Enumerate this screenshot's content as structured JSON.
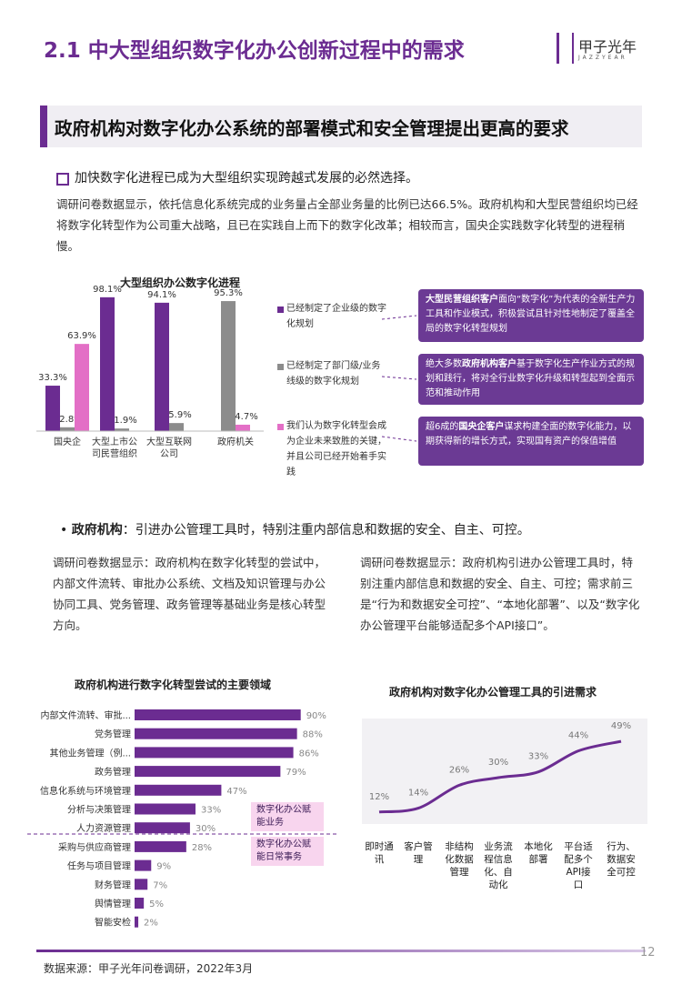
{
  "header": {
    "title": "2.1 中大型组织数字化办公创新过程中的需求",
    "logo": "甲子光年",
    "logo_sub": "JAZZYEAR"
  },
  "banner": "政府机构对数字化办公系统的部署模式和安全管理提出更高的要求",
  "section1": {
    "heading": "加快数字化进程已成为大型组织实现跨越式发展的必然选择。",
    "text": "调研问卷数据显示，依托信息化系统完成的业务量占全部业务量的比例已达66.5%。政府机构和大型民营组织均已经将数字化转型作为公司重大战略，且已在实践自上而下的数字化改革；相较而言，国央企实践数字化转型的进程稍慢。"
  },
  "chart_data": [
    {
      "type": "bar",
      "title": "大型组织办公数字化进程",
      "categories": [
        "国央企",
        "大型上市公司民营组织",
        "大型互联网公司",
        "政府机关"
      ],
      "series": [
        {
          "name": "已经制定了企业级的数字化规划",
          "color": "#6b2c91",
          "values": [
            33.3,
            98.1,
            94.1,
            null
          ],
          "value_labels": [
            "33.3%",
            "98.1%",
            "94.1%",
            null
          ]
        },
        {
          "name": "已经制定了部门级/业务线级的数字化规划",
          "color": "#8c8c8c",
          "values": [
            2.8,
            1.9,
            5.9,
            95.3
          ],
          "value_labels": [
            "2.8%",
            "1.9%",
            "5.9%",
            "95.3%"
          ]
        },
        {
          "name": "我们认为数字化转型会成为企业未来致胜的关键，并且公司已经开始着手实践",
          "color": "#e36fc6",
          "values": [
            63.9,
            null,
            null,
            4.7
          ],
          "value_labels": [
            "63.9%",
            null,
            null,
            "4.7%"
          ]
        }
      ],
      "callouts": [
        {
          "bold": "大型民营组织客户",
          "before": "",
          "after": "面向“数字化”为代表的全新生产力工具和作业模式，积极尝试且针对性地制定了覆盖全局的数字化转型规划"
        },
        {
          "before": "绝大多数",
          "bold": "政府机构客户",
          "after": "基于数字化生产作业方式的规划和践行，将对全行业数字化升级和转型起到全面示范和推动作用"
        },
        {
          "before": "超6成的",
          "bold": "国央企客户",
          "after": "谋求构建全面的数字化能力，以期获得新的增长方式，实现国有资产的保值增值"
        }
      ]
    },
    {
      "type": "hbar",
      "title": "政府机构进行数字化转型尝试的主要领域",
      "categories": [
        "内部文件流转、审批...",
        "党务管理",
        "其他业务管理（例...",
        "政务管理",
        "信息化系统与环境管理",
        "分析与决策管理",
        "人力资源管理",
        "采购与供应商管理",
        "任务与项目管理",
        "财务管理",
        "舆情管理",
        "智能安检"
      ],
      "values": [
        90,
        88,
        86,
        79,
        47,
        33,
        30,
        28,
        9,
        7,
        5,
        2
      ],
      "value_labels": [
        "90%",
        "88%",
        "86%",
        "79%",
        "47%",
        "33%",
        "30%",
        "28%",
        "9%",
        "7%",
        "5%",
        "2%"
      ],
      "color": "#6b2c91",
      "annotations": [
        "数字化办公赋能业务",
        "数字化办公赋能日常事务"
      ]
    },
    {
      "type": "line",
      "title": "政府机构对数字化办公管理工具的引进需求",
      "categories": [
        "即时通讯",
        "客户管理",
        "非结构化数据管理",
        "业务流程信息化、自动化",
        "本地化部署",
        "平台适配多个API接口",
        "行为、数据安全可控"
      ],
      "values": [
        12,
        14,
        26,
        30,
        33,
        44,
        49
      ],
      "value_labels": [
        "12%",
        "14%",
        "26%",
        "30%",
        "33%",
        "44%",
        "49%"
      ],
      "color": "#6b2c91"
    }
  ],
  "section2": {
    "bullet_bold": "政府机构",
    "bullet_text": "：引进办公管理工具时，特别注重内部信息和数据的安全、自主、可控。",
    "left": "调研问卷数据显示：政府机构在数字化转型的尝试中，内部文件流转、审批办公系统、文档及知识管理与办公协同工具、党务管理、政务管理等基础业务是核心转型方向。",
    "right": "调研问卷数据显示：政府机构引进办公管理工具时，特别注重内部信息和数据的安全、自主、可控；需求前三是“行为和数据安全可控”、“本地化部署”、以及“数字化办公管理平台能够适配多个API接口”。"
  },
  "footer": {
    "source": "数据来源：甲子光年问卷调研，2022年3月",
    "page": "12"
  }
}
